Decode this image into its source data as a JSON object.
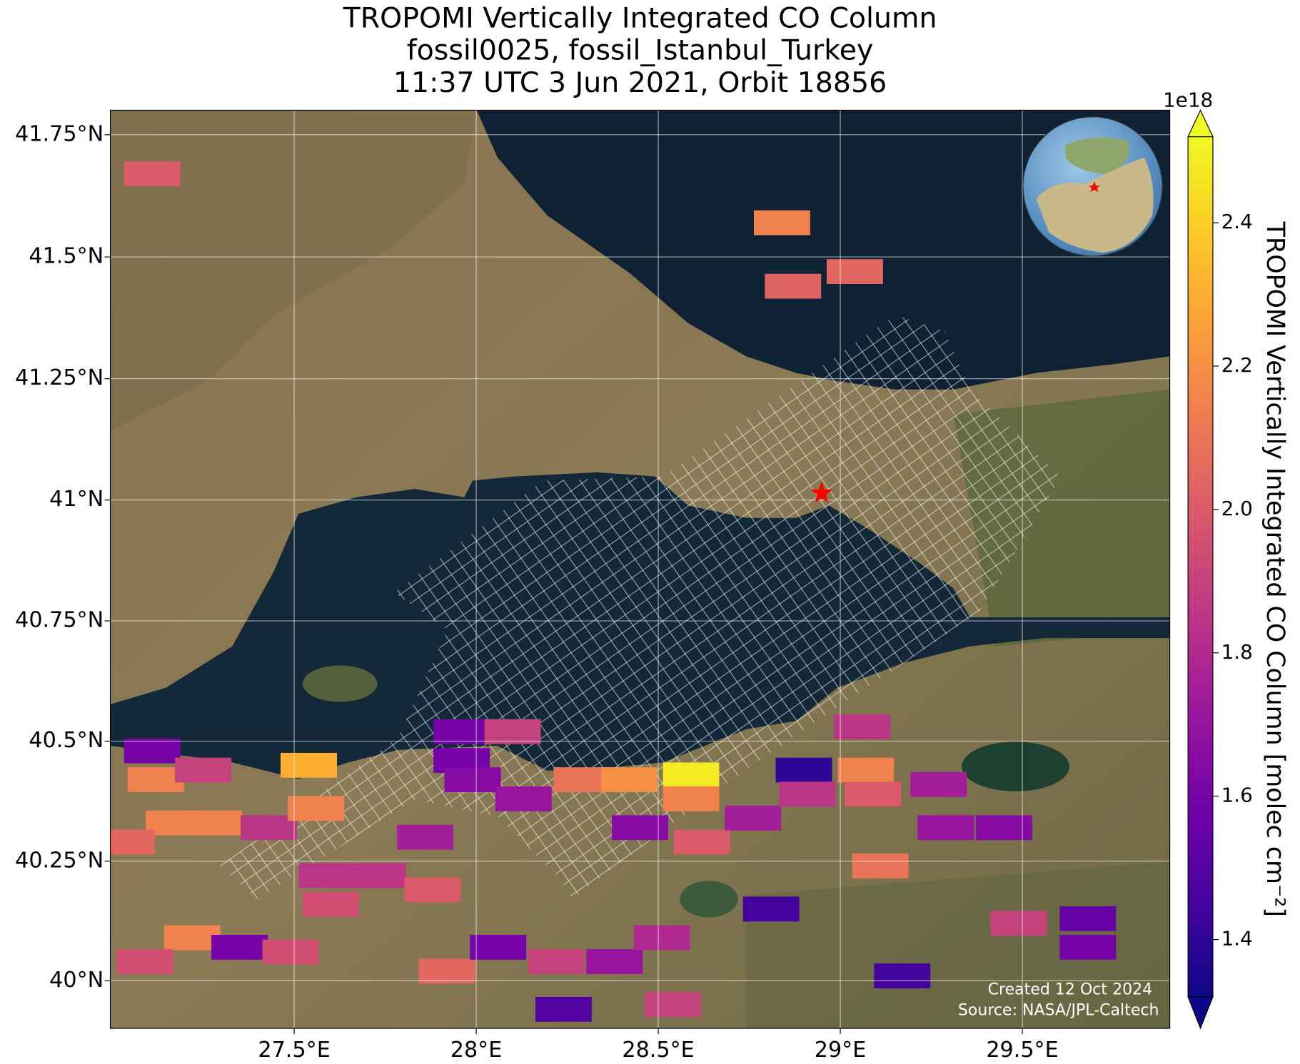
{
  "chart_data": {
    "type": "map",
    "title": [
      "TROPOMI Vertically Integrated CO Column",
      "fossil0025, fossil_Istanbul_Turkey",
      "11:37 UTC 3 Jun 2021, Orbit 18856"
    ],
    "x": [
      27.11,
      28.84,
      28.87,
      29.04,
      27.54,
      27.11,
      27.12,
      27.17,
      27.28,
      27.04,
      27.25,
      27.43,
      27.56,
      27.59,
      27.6,
      27.73,
      27.86,
      27.88,
      27.96,
      27.96,
      28.1,
      27.99,
      28.13,
      28.29,
      28.42,
      28.59,
      28.59,
      28.45,
      28.62,
      28.76,
      28.9,
      28.91,
      29.07,
      29.06,
      29.09,
      29.27,
      29.11,
      29.29,
      29.45,
      29.49,
      29.68,
      29.68,
      28.81,
      29.17,
      27.92,
      28.06,
      28.22,
      28.38,
      28.51,
      28.54,
      28.24,
      27.22,
      27.09,
      27.35,
      27.49
    ],
    "y": [
      41.67,
      41.57,
      41.44,
      41.47,
      40.45,
      40.48,
      40.42,
      40.33,
      40.33,
      40.29,
      40.44,
      40.32,
      40.36,
      40.22,
      40.16,
      40.22,
      40.3,
      40.19,
      40.52,
      40.46,
      40.52,
      40.42,
      40.38,
      40.42,
      40.42,
      40.43,
      40.38,
      40.32,
      40.29,
      40.34,
      40.44,
      40.39,
      40.44,
      40.53,
      40.39,
      40.41,
      40.24,
      40.32,
      40.32,
      40.12,
      40.13,
      40.07,
      40.15,
      40.01,
      40.02,
      40.07,
      40.04,
      40.04,
      40.09,
      39.95,
      39.94,
      40.09,
      40.04,
      40.07,
      40.06
    ],
    "values": [
      2.0,
      2.15,
      2.03,
      2.05,
      2.3,
      1.6,
      2.15,
      2.15,
      2.15,
      2.05,
      1.9,
      1.85,
      2.15,
      1.85,
      1.95,
      1.85,
      1.75,
      2.0,
      1.6,
      1.6,
      1.9,
      1.65,
      1.7,
      2.1,
      2.2,
      2.48,
      2.15,
      1.65,
      2.0,
      1.75,
      1.4,
      1.85,
      2.15,
      1.85,
      2.0,
      1.75,
      2.1,
      1.7,
      1.65,
      1.9,
      1.55,
      1.6,
      1.45,
      1.45,
      2.05,
      1.6,
      1.9,
      1.7,
      1.8,
      1.9,
      1.5,
      2.15,
      1.95,
      1.6,
      1.95
    ],
    "xlim": [
      26.995,
      29.905
    ],
    "ylim": [
      39.9,
      41.8
    ],
    "projection": "mercator",
    "grid": true,
    "xticks": [
      {
        "value": 27.5,
        "label": "27.5°E"
      },
      {
        "value": 28,
        "label": "28°E"
      },
      {
        "value": 28.5,
        "label": "28.5°E"
      },
      {
        "value": 29,
        "label": "29°E"
      },
      {
        "value": 29.5,
        "label": "29.5°E"
      }
    ],
    "yticks": [
      {
        "value": 40,
        "label": "40°N"
      },
      {
        "value": 40.25,
        "label": "40.25°N"
      },
      {
        "value": 40.5,
        "label": "40.5°N"
      },
      {
        "value": 40.75,
        "label": "40.75°N"
      },
      {
        "value": 41,
        "label": "41°N"
      },
      {
        "value": 41.25,
        "label": "41.25°N"
      },
      {
        "value": 41.5,
        "label": "41.5°N"
      },
      {
        "value": 41.75,
        "label": "41.75°N"
      }
    ],
    "colormap": [
      "#0d0887",
      "#46039f",
      "#7201a8",
      "#9c179e",
      "#bd3786",
      "#d8576b",
      "#ed7953",
      "#fb9f3a",
      "#fdca26",
      "#f0f921"
    ],
    "clim": [
      1.32,
      2.52
    ],
    "colorbar": {
      "ticks": [
        1.4,
        1.6,
        1.8,
        {
          "value": 2,
          "label": "2.0"
        },
        2.2,
        2.4
      ],
      "offset_label": "1e18",
      "label": "TROPOMI Vertically Integrated CO Column [molec cm⁻²]",
      "extend": "both"
    },
    "annotations": [
      "Created 12 Oct 2024",
      "Source: NASA/JPL-Caltech"
    ]
  }
}
